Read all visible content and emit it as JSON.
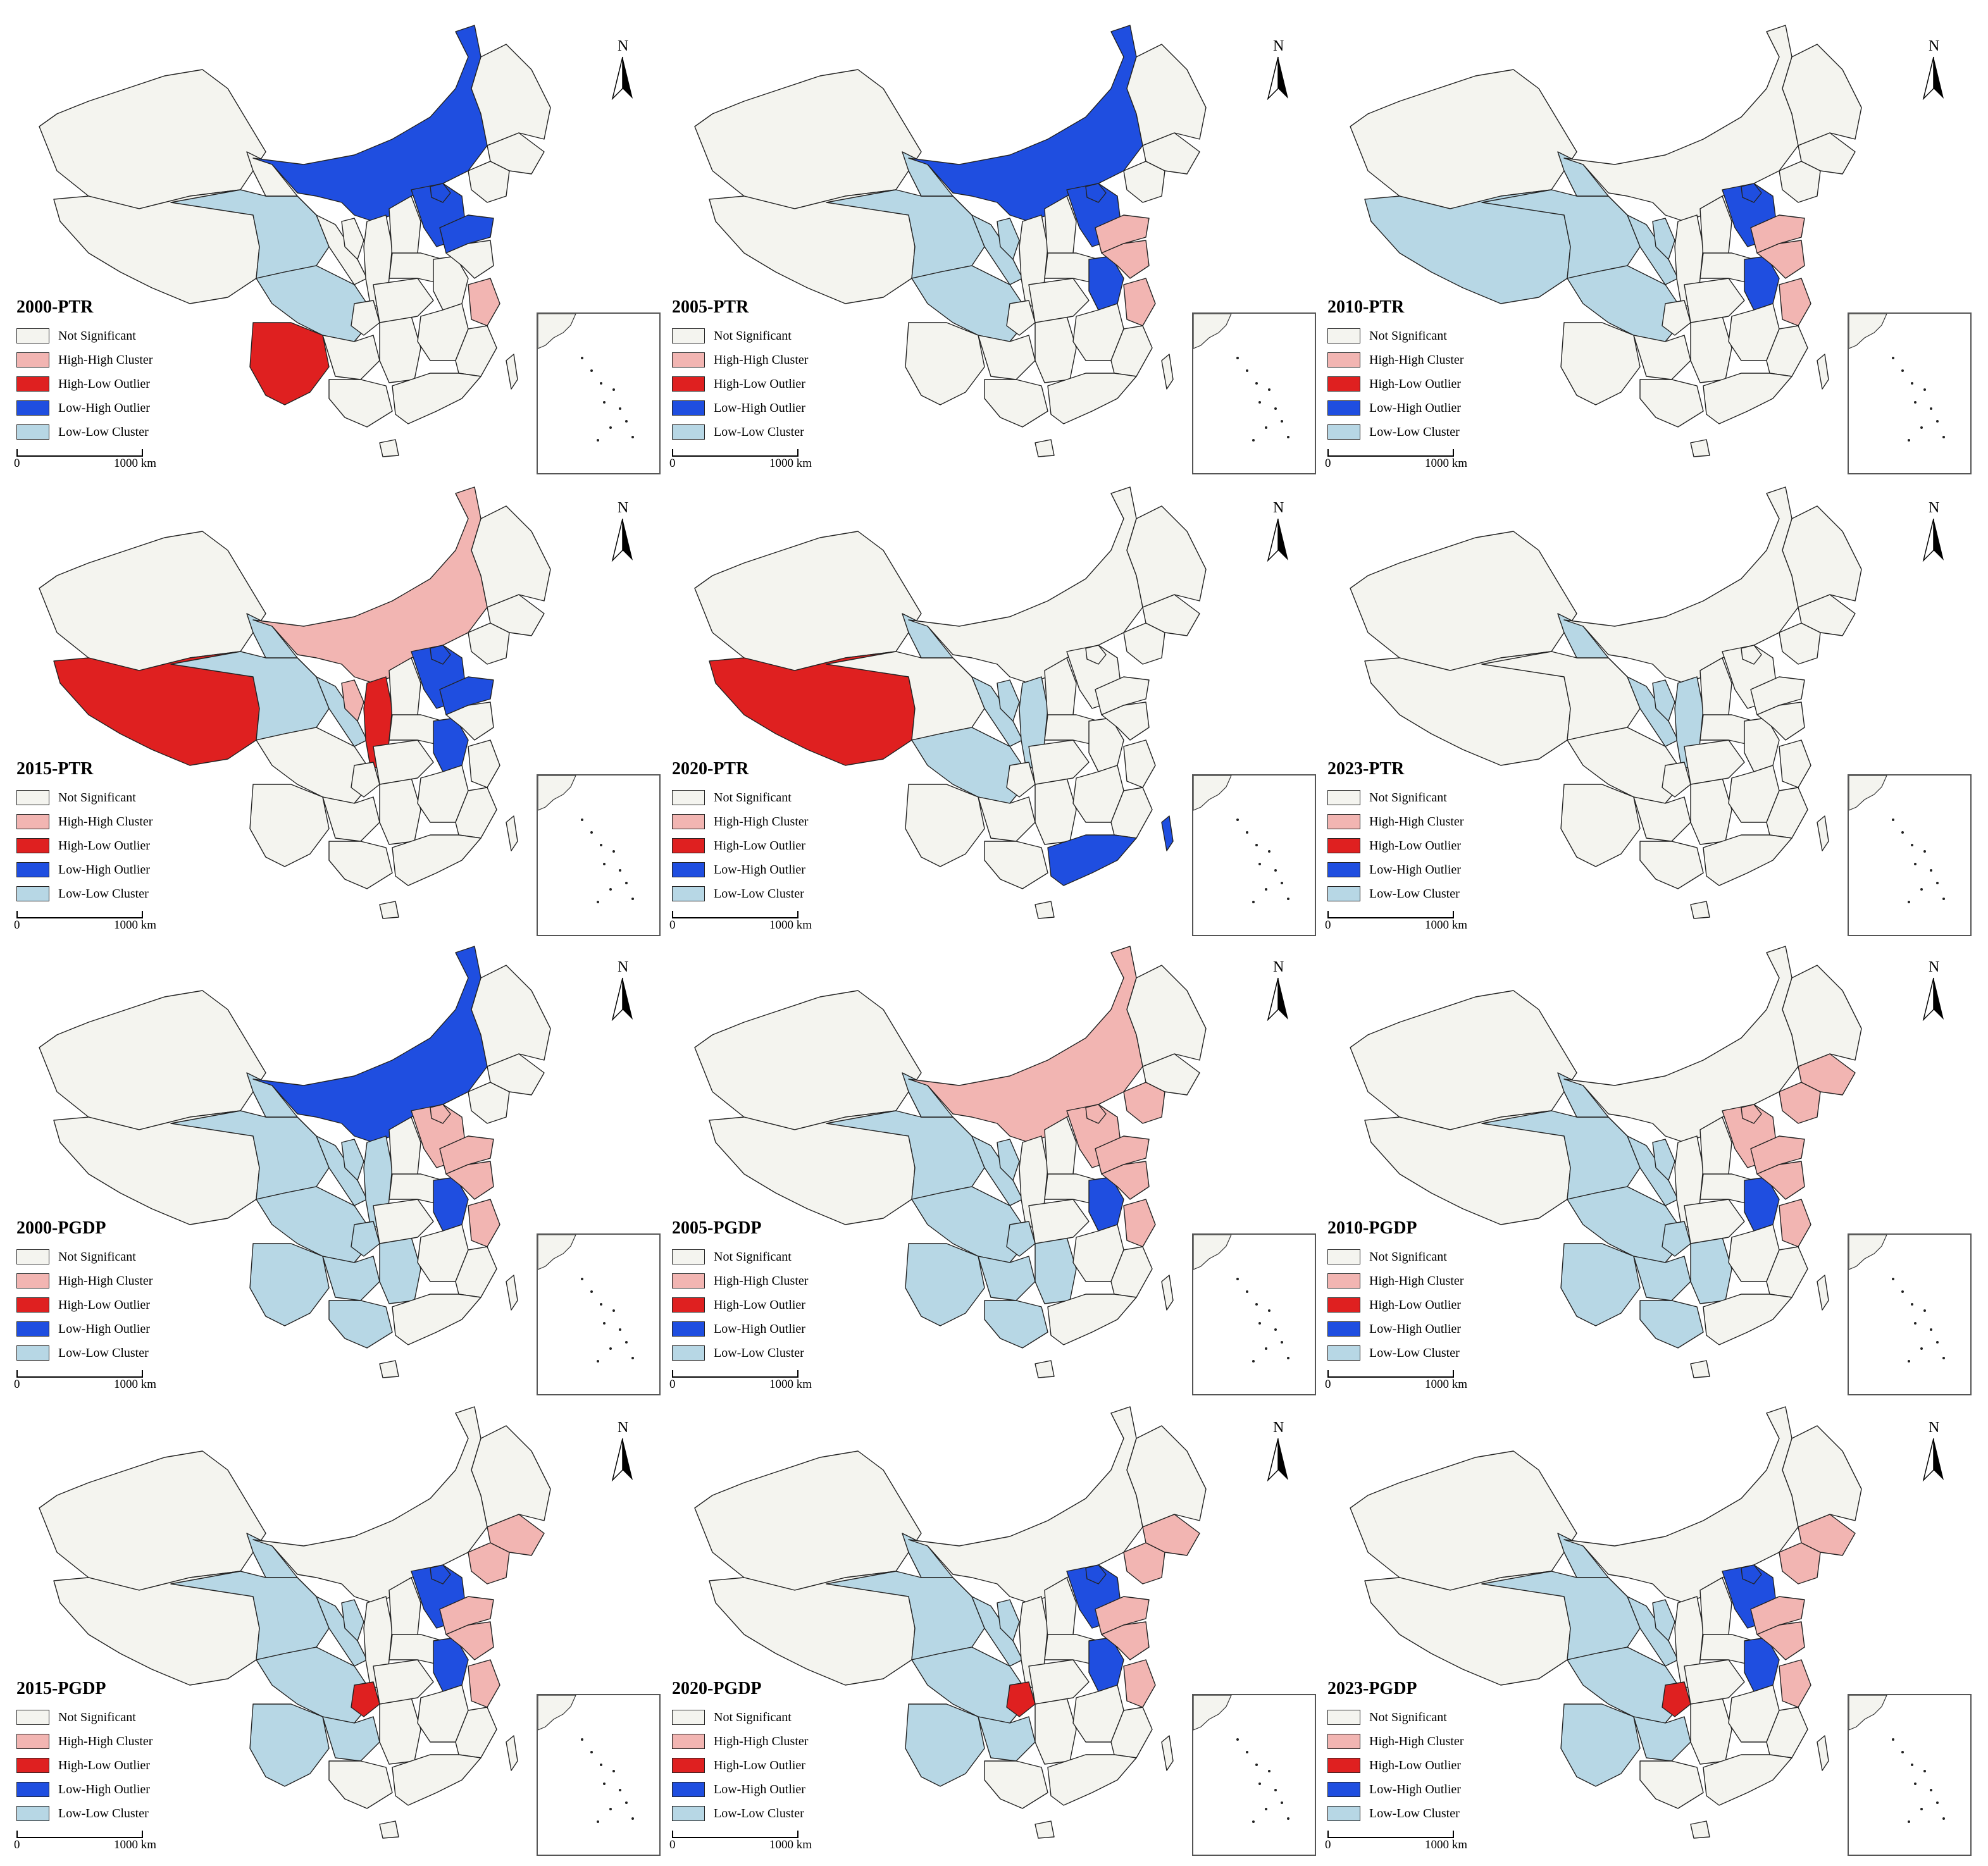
{
  "legend": {
    "items": [
      {
        "label": "Not Significant",
        "color": "#f4f4ef"
      },
      {
        "label": "High-High Cluster",
        "color": "#f2b5b2"
      },
      {
        "label": "High-Low Outlier",
        "color": "#df2020"
      },
      {
        "label": "Low-High Outlier",
        "color": "#1f4ee0"
      },
      {
        "label": "Low-Low Cluster",
        "color": "#b7d7e5"
      }
    ]
  },
  "scale": {
    "start": "0",
    "end": "1000 km"
  },
  "north": "N",
  "panels": [
    {
      "title": "2000-PTR",
      "cats": {
        "imng": "LH",
        "beijing": "LH",
        "hebei": "LH",
        "shandong": "LH",
        "qinghai": "LL",
        "sichuan": "LL",
        "yunnan": "HL",
        "zhejiang": "HH"
      }
    },
    {
      "title": "2005-PTR",
      "cats": {
        "imng": "LH",
        "hebei": "LH",
        "beijing": "LH",
        "shandong": "HH",
        "anhui": "LH",
        "zhejiang": "HH",
        "jiangsu": "HH",
        "qinghai": "LL",
        "sichuan": "LL",
        "gansu": "LL",
        "ningxia": "LL"
      }
    },
    {
      "title": "2010-PTR",
      "cats": {
        "beijing": "LH",
        "hebei": "LH",
        "anhui": "LH",
        "shandong": "HH",
        "jiangsu": "HH",
        "zhejiang": "HH",
        "xizang": "LL",
        "qinghai": "LL",
        "sichuan": "LL",
        "gansu": "LL",
        "ningxia": "LL"
      }
    },
    {
      "title": "2015-PTR",
      "cats": {
        "imng": "HH",
        "ningxia": "HH",
        "shaanxi": "HL",
        "xizang": "HL",
        "qinghai": "LL",
        "gansu": "LL",
        "hebei": "LH",
        "beijing": "LH",
        "shandong": "LH",
        "anhui": "LH"
      }
    },
    {
      "title": "2020-PTR",
      "cats": {
        "xizang": "HL",
        "gansu": "LL",
        "ningxia": "LL",
        "shaanxi": "LL",
        "sichuan": "LL",
        "guangdong": "LH",
        "taiwan": "LH"
      }
    },
    {
      "title": "2023-PTR",
      "cats": {
        "gansu": "LL",
        "ningxia": "LL",
        "shaanxi": "LL"
      }
    },
    {
      "title": "2000-PGDP",
      "cats": {
        "imng": "LH",
        "hebei": "HH",
        "beijing": "HH",
        "shandong": "HH",
        "jiangsu": "HH",
        "zhejiang": "HH",
        "anhui": "LH",
        "qinghai": "LL",
        "gansu": "LL",
        "ningxia": "LL",
        "shaanxi": "LL",
        "sichuan": "LL",
        "chongqing": "LL",
        "guizhou": "LL",
        "yunnan": "LL",
        "guangxi": "LL",
        "hunan": "LL"
      }
    },
    {
      "title": "2005-PGDP",
      "cats": {
        "imng": "HH",
        "liaoning": "HH",
        "hebei": "HH",
        "beijing": "HH",
        "shandong": "HH",
        "jiangsu": "HH",
        "zhejiang": "HH",
        "anhui": "LH",
        "qinghai": "LL",
        "gansu": "LL",
        "ningxia": "LL",
        "sichuan": "LL",
        "chongqing": "LL",
        "guizhou": "LL",
        "yunnan": "LL",
        "guangxi": "LL",
        "hunan": "LL"
      }
    },
    {
      "title": "2010-PGDP",
      "cats": {
        "jilin": "HH",
        "liaoning": "HH",
        "hebei": "HH",
        "beijing": "HH",
        "shandong": "HH",
        "jiangsu": "HH",
        "zhejiang": "HH",
        "anhui": "LH",
        "qinghai": "LL",
        "gansu": "LL",
        "ningxia": "LL",
        "sichuan": "LL",
        "chongqing": "LL",
        "guizhou": "LL",
        "yunnan": "LL",
        "guangxi": "LL",
        "hunan": "LL"
      }
    },
    {
      "title": "2015-PGDP",
      "cats": {
        "jilin": "HH",
        "liaoning": "HH",
        "hebei": "LH",
        "beijing": "LH",
        "shandong": "HH",
        "jiangsu": "HH",
        "zhejiang": "HH",
        "anhui": "LH",
        "chongqing": "HL",
        "qinghai": "LL",
        "gansu": "LL",
        "ningxia": "LL",
        "sichuan": "LL",
        "guizhou": "LL",
        "yunnan": "LL"
      }
    },
    {
      "title": "2020-PGDP",
      "cats": {
        "jilin": "HH",
        "liaoning": "HH",
        "hebei": "LH",
        "beijing": "LH",
        "shandong": "HH",
        "jiangsu": "HH",
        "zhejiang": "HH",
        "anhui": "LH",
        "chongqing": "HL",
        "qinghai": "LL",
        "gansu": "LL",
        "ningxia": "LL",
        "sichuan": "LL",
        "yunnan": "LL",
        "guizhou": "LL"
      }
    },
    {
      "title": "2023-PGDP",
      "cats": {
        "jilin": "HH",
        "liaoning": "HH",
        "hebei": "LH",
        "beijing": "LH",
        "shandong": "HH",
        "jiangsu": "HH",
        "zhejiang": "HH",
        "anhui": "LH",
        "chongqing": "HL",
        "qinghai": "LL",
        "gansu": "LL",
        "ningxia": "LL",
        "sichuan": "LL",
        "yunnan": "LL",
        "guizhou": "LL"
      }
    }
  ]
}
